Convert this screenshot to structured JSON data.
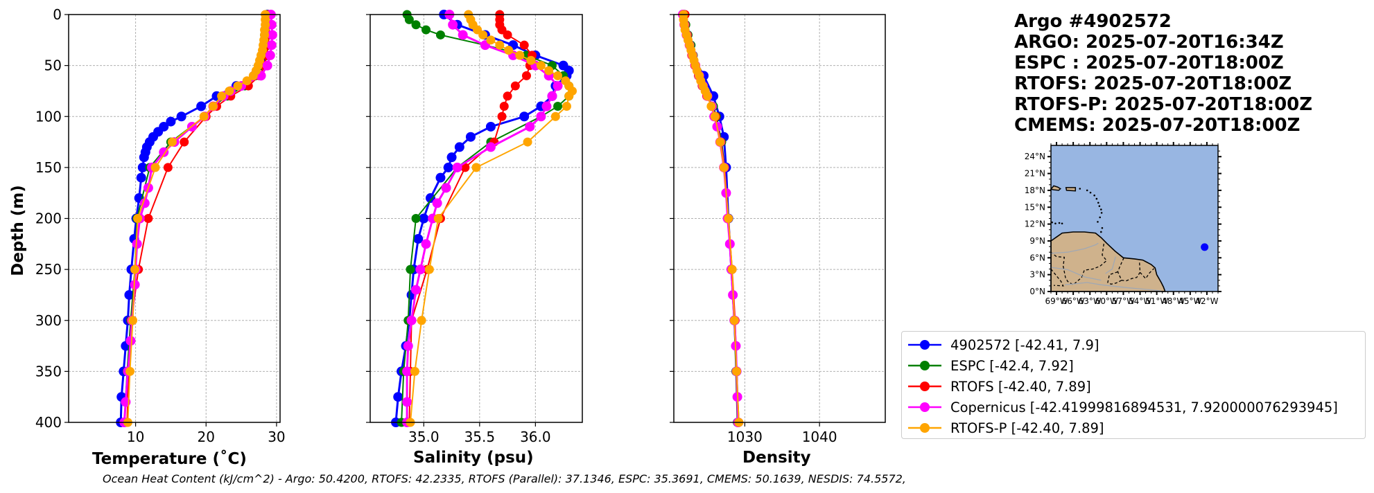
{
  "title_block": {
    "lines": [
      "Argo #4902572",
      "ARGO: 2025-07-20T16:34Z",
      "ESPC : 2025-07-20T18:00Z",
      "RTOFS: 2025-07-20T18:00Z",
      "RTOFS-P: 2025-07-20T18:00Z",
      "CMEMS: 2025-07-20T18:00Z"
    ]
  },
  "footer": {
    "text": "Ocean Heat Content (kJ/cm^2) - Argo: 50.4200,  RTOFS: 42.2335,  RTOFS (Parallel): 37.1346,  ESPC: 35.3691,  CMEMS: 50.1639,  NESDIS: 74.5572,"
  },
  "colors": {
    "argo": "#0000ff",
    "espc": "#008000",
    "rtofs": "#ff0000",
    "copernicus": "#ff00ff",
    "rtofs_p": "#ffa500",
    "ocean": "#98b6e2",
    "land": "#cfb28c"
  },
  "legend": [
    {
      "label": "4902572 [-42.41, 7.9]",
      "color": "#0000ff"
    },
    {
      "label": "ESPC [-42.4, 7.92]",
      "color": "#008000"
    },
    {
      "label": "RTOFS [-42.40, 7.89]",
      "color": "#ff0000"
    },
    {
      "label": "Copernicus [-42.41999816894531, 7.920000076293945]",
      "color": "#ff00ff"
    },
    {
      "label": "RTOFS-P [-42.40, 7.89]",
      "color": "#ffa500"
    }
  ],
  "map": {
    "lat_ticks": [
      "0°N",
      "3°N",
      "6°N",
      "9°N",
      "12°N",
      "15°N",
      "18°N",
      "21°N",
      "24°N"
    ],
    "lon_ticks": [
      "69°W",
      "66°W",
      "63°W",
      "60°W",
      "57°W",
      "54°W",
      "51°W",
      "48°W",
      "45°W",
      "42°W"
    ],
    "float_lon": -42.41,
    "float_lat": 7.9,
    "lon_range": [
      -70,
      -40
    ],
    "lat_range": [
      0,
      26
    ]
  },
  "chart_data": [
    {
      "type": "line",
      "xlabel": "Temperature (˚C)",
      "ylabel": "Depth (m)",
      "xlim": [
        0.5,
        30.5
      ],
      "ylim": [
        400,
        0
      ],
      "xticks": [
        10,
        20,
        30
      ],
      "yticks": [
        0,
        50,
        100,
        150,
        200,
        250,
        300,
        350,
        400
      ],
      "grid": true,
      "series": [
        {
          "name": "4902572",
          "color": "#0000ff",
          "dense": true,
          "depth": [
            0,
            10,
            20,
            30,
            40,
            50,
            60,
            70,
            80,
            90,
            100,
            105,
            110,
            115,
            120,
            125,
            130,
            135,
            140,
            150,
            160,
            180,
            200,
            220,
            250,
            275,
            300,
            325,
            350,
            375,
            400
          ],
          "values": [
            28.7,
            28.8,
            28.8,
            28.7,
            28.5,
            28.0,
            26.8,
            24.3,
            21.5,
            19.3,
            16.5,
            15.0,
            14.0,
            13.2,
            12.5,
            12.0,
            11.6,
            11.4,
            11.2,
            11.0,
            10.8,
            10.5,
            10.1,
            9.8,
            9.4,
            9.1,
            8.9,
            8.6,
            8.3,
            8.0,
            7.9
          ]
        },
        {
          "name": "ESPC",
          "color": "#008000",
          "depth": [
            0,
            10,
            20,
            30,
            40,
            50,
            60,
            70,
            80,
            90,
            100,
            125,
            150,
            200,
            250,
            300,
            350,
            400
          ],
          "values": [
            28.6,
            28.5,
            28.3,
            28.2,
            28.0,
            27.8,
            27.0,
            25.5,
            23.0,
            21.0,
            19.8,
            15.0,
            12.0,
            10.2,
            9.9,
            9.3,
            8.8,
            8.4
          ]
        },
        {
          "name": "RTOFS",
          "color": "#ff0000",
          "depth": [
            0,
            10,
            20,
            30,
            40,
            50,
            60,
            70,
            80,
            90,
            100,
            125,
            150,
            200,
            250,
            300,
            350,
            400
          ],
          "values": [
            28.9,
            28.9,
            28.9,
            28.8,
            28.6,
            28.3,
            27.6,
            26.0,
            23.5,
            21.5,
            20.0,
            16.9,
            14.6,
            11.8,
            10.4,
            9.4,
            9.0,
            8.8
          ]
        },
        {
          "name": "Copernicus",
          "color": "#ff00ff",
          "dense": true,
          "depth": [
            0,
            10,
            20,
            30,
            40,
            50,
            60,
            70,
            75,
            80,
            90,
            100,
            110,
            125,
            135,
            150,
            170,
            185,
            200,
            225,
            250,
            265,
            300,
            320,
            350,
            380,
            400
          ],
          "values": [
            29.2,
            29.3,
            29.4,
            29.3,
            29.1,
            28.7,
            27.8,
            25.0,
            23.5,
            22.5,
            21.0,
            19.8,
            18.0,
            15.5,
            14.0,
            12.3,
            11.8,
            11.3,
            10.6,
            10.2,
            10.0,
            9.9,
            9.5,
            9.3,
            8.9,
            8.6,
            8.4
          ]
        },
        {
          "name": "RTOFS-P",
          "color": "#ffa500",
          "depth": [
            0,
            5,
            10,
            15,
            20,
            25,
            30,
            35,
            40,
            45,
            50,
            55,
            60,
            65,
            70,
            75,
            80,
            90,
            100,
            125,
            150,
            200,
            250,
            300,
            350,
            400
          ],
          "values": [
            28.4,
            28.4,
            28.4,
            28.3,
            28.3,
            28.2,
            28.1,
            28.0,
            27.8,
            27.6,
            27.4,
            27.1,
            26.7,
            25.8,
            24.5,
            23.3,
            22.2,
            21.0,
            19.7,
            15.2,
            12.8,
            10.3,
            9.9,
            9.6,
            9.2,
            8.9
          ]
        }
      ]
    },
    {
      "type": "line",
      "xlabel": "Salinity (psu)",
      "xlim": [
        34.52,
        36.42
      ],
      "ylim": [
        400,
        0
      ],
      "xticks": [
        35.0,
        35.5,
        36.0
      ],
      "xtick_labels": [
        "35.0",
        "35.5",
        "36.0"
      ],
      "yticks": [
        0,
        50,
        100,
        150,
        200,
        250,
        300,
        350,
        400
      ],
      "grid": true,
      "series": [
        {
          "name": "4902572",
          "color": "#0000ff",
          "dense": true,
          "depth": [
            0,
            10,
            20,
            30,
            40,
            50,
            55,
            60,
            70,
            80,
            90,
            100,
            110,
            120,
            130,
            140,
            150,
            160,
            180,
            200,
            220,
            250,
            275,
            300,
            325,
            350,
            375,
            400
          ],
          "values": [
            35.18,
            35.3,
            35.55,
            35.8,
            36.0,
            36.25,
            36.3,
            36.28,
            36.18,
            36.15,
            36.05,
            35.9,
            35.6,
            35.42,
            35.32,
            35.25,
            35.22,
            35.15,
            35.06,
            35.0,
            34.95,
            34.91,
            34.89,
            34.87,
            34.84,
            34.8,
            34.77,
            34.75
          ]
        },
        {
          "name": "ESPC",
          "color": "#008000",
          "depth": [
            0,
            5,
            10,
            15,
            20,
            30,
            40,
            50,
            60,
            70,
            80,
            90,
            100,
            125,
            150,
            200,
            250,
            300,
            350,
            400
          ],
          "values": [
            34.85,
            34.87,
            34.93,
            35.02,
            35.15,
            35.55,
            35.92,
            36.15,
            36.25,
            36.3,
            36.3,
            36.2,
            36.05,
            35.6,
            35.3,
            34.93,
            34.88,
            34.86,
            34.82,
            34.8
          ]
        },
        {
          "name": "RTOFS",
          "color": "#ff0000",
          "depth": [
            0,
            5,
            10,
            15,
            20,
            30,
            40,
            50,
            60,
            70,
            80,
            90,
            100,
            125,
            150,
            200,
            250,
            300,
            350,
            400
          ],
          "values": [
            35.68,
            35.68,
            35.68,
            35.7,
            35.75,
            35.9,
            35.97,
            35.95,
            35.92,
            35.82,
            35.75,
            35.72,
            35.7,
            35.63,
            35.37,
            35.15,
            35.03,
            34.89,
            34.88,
            34.87
          ]
        },
        {
          "name": "Copernicus",
          "color": "#ff00ff",
          "dense": true,
          "depth": [
            0,
            10,
            20,
            30,
            40,
            50,
            60,
            70,
            80,
            90,
            100,
            110,
            130,
            150,
            170,
            185,
            200,
            225,
            250,
            270,
            300,
            325,
            350,
            380,
            400
          ],
          "values": [
            35.23,
            35.26,
            35.35,
            35.55,
            35.8,
            36.0,
            36.12,
            36.2,
            36.15,
            36.1,
            36.05,
            35.95,
            35.6,
            35.3,
            35.2,
            35.12,
            35.08,
            35.02,
            34.97,
            34.93,
            34.89,
            34.86,
            34.85,
            34.85,
            34.85
          ]
        },
        {
          "name": "RTOFS-P",
          "color": "#ffa500",
          "depth": [
            0,
            5,
            10,
            15,
            20,
            25,
            30,
            35,
            40,
            45,
            50,
            55,
            60,
            65,
            70,
            75,
            80,
            90,
            100,
            125,
            150,
            200,
            250,
            300,
            350,
            400
          ],
          "values": [
            35.4,
            35.42,
            35.44,
            35.48,
            35.53,
            35.6,
            35.68,
            35.76,
            35.86,
            35.96,
            36.05,
            36.12,
            36.2,
            36.27,
            36.3,
            36.33,
            36.3,
            36.28,
            36.18,
            35.93,
            35.47,
            35.13,
            35.05,
            34.98,
            34.92,
            34.88
          ]
        }
      ]
    },
    {
      "type": "line",
      "xlabel": "Density",
      "xlim": [
        1020.5,
        1048.8
      ],
      "ylim": [
        400,
        0
      ],
      "xticks": [
        1030,
        1040
      ],
      "yticks": [
        0,
        50,
        100,
        150,
        200,
        250,
        300,
        350,
        400
      ],
      "grid": true,
      "series": [
        {
          "name": "4902572",
          "color": "#0000ff",
          "dense": true,
          "depth": [
            0,
            20,
            40,
            60,
            80,
            100,
            120,
            150,
            200,
            250,
            300,
            350,
            400
          ],
          "values": [
            1021.8,
            1022.3,
            1023.0,
            1024.5,
            1025.8,
            1026.6,
            1027.2,
            1027.5,
            1027.8,
            1028.2,
            1028.6,
            1028.9,
            1029.1
          ]
        },
        {
          "name": "ESPC",
          "color": "#008000",
          "depth": [
            0,
            10,
            20,
            30,
            40,
            50,
            60,
            70,
            80,
            90,
            100,
            125,
            150,
            200,
            250,
            300,
            350,
            400
          ],
          "values": [
            1021.9,
            1022.1,
            1022.4,
            1022.8,
            1023.1,
            1023.4,
            1023.8,
            1024.3,
            1025.0,
            1025.8,
            1026.2,
            1026.9,
            1027.3,
            1027.8,
            1028.2,
            1028.6,
            1028.8,
            1029.0
          ]
        },
        {
          "name": "RTOFS",
          "color": "#ff0000",
          "depth": [
            0,
            10,
            20,
            30,
            40,
            50,
            60,
            70,
            80,
            90,
            100,
            125,
            150,
            200,
            250,
            300,
            350,
            400
          ],
          "values": [
            1022.0,
            1022.0,
            1022.3,
            1022.6,
            1022.9,
            1023.3,
            1023.8,
            1024.3,
            1024.9,
            1025.6,
            1026.1,
            1026.8,
            1027.3,
            1027.8,
            1028.3,
            1028.7,
            1028.9,
            1029.2
          ]
        },
        {
          "name": "Copernicus",
          "color": "#ff00ff",
          "dense": true,
          "depth": [
            0,
            10,
            20,
            30,
            40,
            50,
            60,
            70,
            80,
            90,
            100,
            110,
            125,
            150,
            175,
            200,
            225,
            250,
            275,
            300,
            325,
            350,
            375,
            400
          ],
          "values": [
            1021.7,
            1021.9,
            1022.2,
            1022.6,
            1023.0,
            1023.4,
            1023.9,
            1024.4,
            1025.0,
            1025.6,
            1025.9,
            1026.3,
            1026.7,
            1027.2,
            1027.5,
            1027.7,
            1028.0,
            1028.2,
            1028.4,
            1028.6,
            1028.8,
            1028.9,
            1029.0,
            1029.1
          ]
        },
        {
          "name": "RTOFS-P",
          "color": "#ffa500",
          "depth": [
            0,
            5,
            10,
            15,
            20,
            25,
            30,
            35,
            40,
            45,
            50,
            55,
            60,
            65,
            70,
            75,
            80,
            90,
            100,
            125,
            150,
            200,
            250,
            300,
            350,
            400
          ],
          "values": [
            1021.8,
            1021.8,
            1021.9,
            1022.0,
            1022.2,
            1022.4,
            1022.6,
            1022.8,
            1023.0,
            1023.2,
            1023.4,
            1023.6,
            1023.9,
            1024.1,
            1024.4,
            1024.7,
            1025.0,
            1025.5,
            1026.0,
            1026.7,
            1027.2,
            1027.8,
            1028.3,
            1028.6,
            1028.9,
            1029.2
          ]
        }
      ]
    }
  ]
}
